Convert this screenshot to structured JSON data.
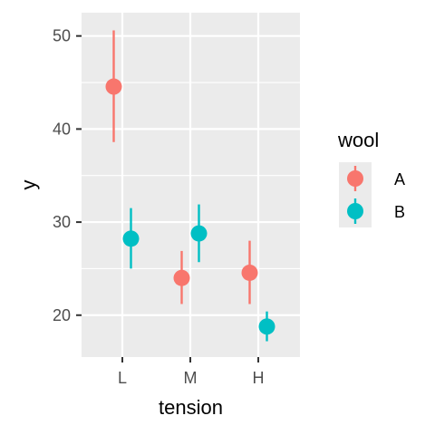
{
  "chart_data": {
    "type": "pointrange",
    "title": "",
    "xlabel": "tension",
    "ylabel": "y",
    "categories": [
      "L",
      "M",
      "H"
    ],
    "yticks": [
      20,
      30,
      40,
      50
    ],
    "ylim": [
      15.5,
      52.5
    ],
    "grid": true,
    "legend": {
      "title": "wool",
      "position": "right"
    },
    "series": [
      {
        "name": "A",
        "color": "#F8766D",
        "points": [
          {
            "x": "L",
            "y": 44.56,
            "ymin": 38.6,
            "ymax": 50.6
          },
          {
            "x": "M",
            "y": 24.0,
            "ymin": 21.2,
            "ymax": 26.9
          },
          {
            "x": "H",
            "y": 24.56,
            "ymin": 21.2,
            "ymax": 28.0
          }
        ]
      },
      {
        "name": "B",
        "color": "#00BFC4",
        "points": [
          {
            "x": "L",
            "y": 28.22,
            "ymin": 25.0,
            "ymax": 31.5
          },
          {
            "x": "M",
            "y": 28.78,
            "ymin": 25.7,
            "ymax": 31.9
          },
          {
            "x": "H",
            "y": 18.78,
            "ymin": 17.2,
            "ymax": 20.4
          }
        ]
      }
    ]
  },
  "colors": {
    "panel_background": "#EBEBEB",
    "grid": "#FFFFFF",
    "tick": "#333333"
  }
}
